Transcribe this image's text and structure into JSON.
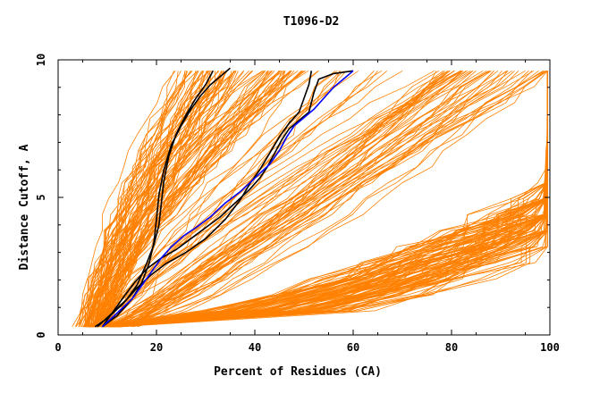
{
  "chart_data": {
    "type": "line",
    "title": "T1096-D2",
    "xlabel": "Percent of Residues (CA)",
    "ylabel": "Distance Cutoff, A",
    "xlim": [
      0,
      100
    ],
    "ylim": [
      0,
      10
    ],
    "x_ticks": [
      0,
      20,
      40,
      60,
      80,
      100
    ],
    "y_ticks": [
      0,
      5,
      10
    ],
    "grid": false,
    "legend": "none",
    "colors": {
      "background_series": "#ff8000",
      "black": "#000000",
      "blue": "#0000ff"
    },
    "highlight_series": [
      {
        "color": "#000000",
        "points": [
          [
            8,
            0.3
          ],
          [
            11,
            0.8
          ],
          [
            14,
            1.3
          ],
          [
            16,
            1.8
          ],
          [
            18,
            2.6
          ],
          [
            19.5,
            3.3
          ],
          [
            20.5,
            4.0
          ],
          [
            21,
            4.8
          ],
          [
            21.5,
            5.6
          ],
          [
            22.5,
            6.5
          ],
          [
            24,
            7.3
          ],
          [
            26,
            8.0
          ],
          [
            28,
            8.6
          ],
          [
            30,
            9.1
          ],
          [
            31.5,
            9.6
          ]
        ]
      },
      {
        "color": "#000000",
        "points": [
          [
            9,
            0.3
          ],
          [
            12,
            0.7
          ],
          [
            15,
            1.3
          ],
          [
            17,
            1.9
          ],
          [
            18.5,
            2.6
          ],
          [
            19.5,
            3.4
          ],
          [
            20,
            4.2
          ],
          [
            20.5,
            5.1
          ],
          [
            21.5,
            6.0
          ],
          [
            23,
            6.9
          ],
          [
            25,
            7.6
          ],
          [
            27,
            8.2
          ],
          [
            29,
            8.7
          ],
          [
            31,
            9.1
          ],
          [
            33,
            9.4
          ],
          [
            35,
            9.7
          ]
        ]
      },
      {
        "color": "#000000",
        "points": [
          [
            7.5,
            0.3
          ],
          [
            10,
            0.6
          ],
          [
            13,
            1.1
          ],
          [
            16,
            1.7
          ],
          [
            19,
            2.2
          ],
          [
            22,
            2.6
          ],
          [
            26,
            3.0
          ],
          [
            30,
            3.5
          ],
          [
            34,
            4.2
          ],
          [
            37,
            4.9
          ],
          [
            39,
            5.5
          ],
          [
            41,
            6.0
          ],
          [
            43,
            6.6
          ],
          [
            45,
            7.2
          ],
          [
            47,
            7.7
          ],
          [
            49,
            8.1
          ],
          [
            50,
            8.6
          ],
          [
            51,
            9.1
          ],
          [
            51.5,
            9.6
          ]
        ]
      },
      {
        "color": "#000000",
        "points": [
          [
            9,
            0.3
          ],
          [
            11,
            0.8
          ],
          [
            13,
            1.3
          ],
          [
            15.5,
            1.9
          ],
          [
            18,
            2.4
          ],
          [
            21,
            2.8
          ],
          [
            24,
            3.1
          ],
          [
            27,
            3.5
          ],
          [
            30,
            3.9
          ],
          [
            33,
            4.3
          ],
          [
            36,
            4.8
          ],
          [
            39,
            5.3
          ],
          [
            41,
            5.7
          ],
          [
            42.5,
            6.1
          ],
          [
            44,
            6.6
          ],
          [
            45.5,
            7.1
          ],
          [
            47,
            7.5
          ],
          [
            49,
            7.8
          ],
          [
            51,
            8.1
          ],
          [
            52,
            8.8
          ],
          [
            53,
            9.3
          ],
          [
            56,
            9.5
          ],
          [
            60,
            9.6
          ]
        ]
      },
      {
        "color": "#0000ff",
        "points": [
          [
            9,
            0.3
          ],
          [
            12,
            0.8
          ],
          [
            15,
            1.3
          ],
          [
            17,
            1.8
          ],
          [
            19,
            2.3
          ],
          [
            21,
            2.8
          ],
          [
            23,
            3.2
          ],
          [
            25.5,
            3.6
          ],
          [
            28,
            3.9
          ],
          [
            31,
            4.3
          ],
          [
            34,
            4.8
          ],
          [
            37,
            5.2
          ],
          [
            40,
            5.7
          ],
          [
            43,
            6.2
          ],
          [
            45,
            6.7
          ],
          [
            46.5,
            7.2
          ],
          [
            48,
            7.6
          ],
          [
            50,
            7.9
          ],
          [
            52,
            8.2
          ],
          [
            54,
            8.6
          ],
          [
            56,
            9.0
          ],
          [
            58,
            9.3
          ],
          [
            60,
            9.6
          ]
        ]
      }
    ]
  }
}
